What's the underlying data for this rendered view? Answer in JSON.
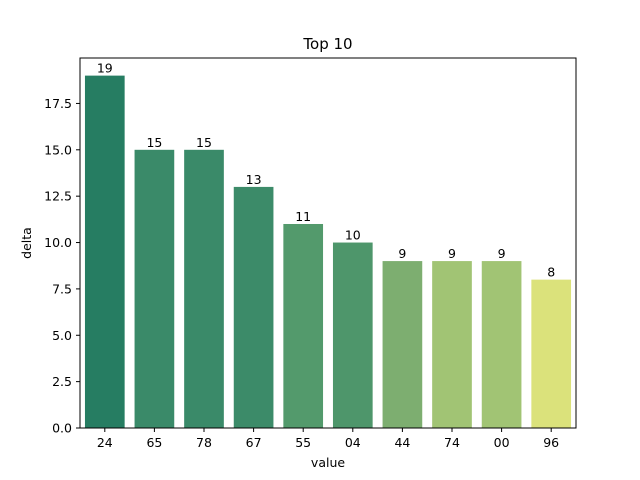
{
  "chart_data": {
    "type": "bar",
    "title": "Top 10",
    "xlabel": "value",
    "ylabel": "delta",
    "categories": [
      "24",
      "65",
      "78",
      "67",
      "55",
      "04",
      "44",
      "74",
      "00",
      "96"
    ],
    "values": [
      19,
      15,
      15,
      13,
      11,
      10,
      9,
      9,
      9,
      8
    ],
    "bar_labels": [
      "19",
      "15",
      "15",
      "13",
      "11",
      "10",
      "9",
      "9",
      "9",
      "8"
    ],
    "bar_colors": [
      "#267d62",
      "#3a8a69",
      "#3a8a69",
      "#3c8b69",
      "#539a6c",
      "#4e966b",
      "#7dae70",
      "#a1c474",
      "#a1c474",
      "#dbe27b"
    ],
    "ylim": [
      0,
      19.95
    ],
    "yticks": [
      0.0,
      2.5,
      5.0,
      7.5,
      10.0,
      12.5,
      15.0,
      17.5
    ],
    "ytick_labels": [
      "0.0",
      "2.5",
      "5.0",
      "7.5",
      "10.0",
      "12.5",
      "15.0",
      "17.5"
    ],
    "grid": false,
    "legend": "none"
  }
}
